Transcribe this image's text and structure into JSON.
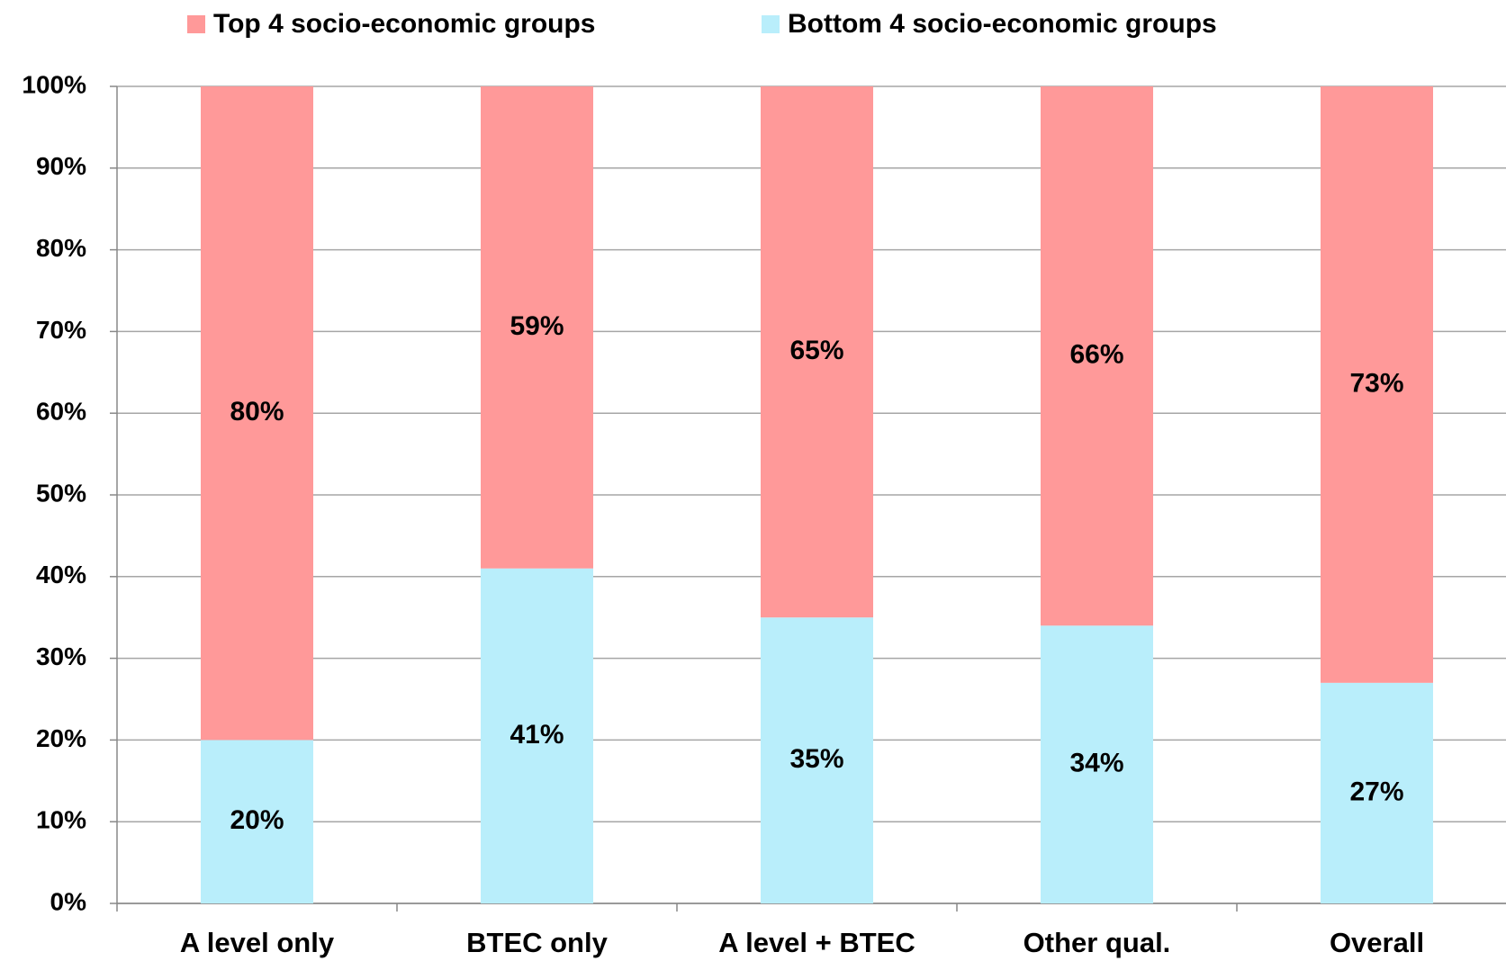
{
  "chart_data": {
    "type": "stacked_bar",
    "categories": [
      "A level only",
      "BTEC only",
      "A level + BTEC",
      "Other qual.",
      "Overall"
    ],
    "series": [
      {
        "name": "Top 4 socio-economic groups",
        "color": "#ff9999",
        "values": [
          80,
          59,
          65,
          66,
          73
        ],
        "value_labels": [
          "80%",
          "59%",
          "65%",
          "66%",
          "73%"
        ]
      },
      {
        "name": "Bottom 4 socio-economic groups",
        "color": "#b9eefb",
        "values": [
          20,
          41,
          35,
          34,
          27
        ],
        "value_labels": [
          "20%",
          "41%",
          "35%",
          "34%",
          "27%"
        ]
      }
    ],
    "ylim": [
      0,
      100
    ],
    "yticks": [
      {
        "value": 0,
        "label": "0%"
      },
      {
        "value": 10,
        "label": "10%"
      },
      {
        "value": 20,
        "label": "20%"
      },
      {
        "value": 30,
        "label": "30%"
      },
      {
        "value": 40,
        "label": "40%"
      },
      {
        "value": 50,
        "label": "50%"
      },
      {
        "value": 60,
        "label": "60%"
      },
      {
        "value": 70,
        "label": "70%"
      },
      {
        "value": 80,
        "label": "80%"
      },
      {
        "value": 90,
        "label": "90%"
      },
      {
        "value": 100,
        "label": "100%"
      }
    ],
    "grid": true,
    "legend": "top"
  }
}
